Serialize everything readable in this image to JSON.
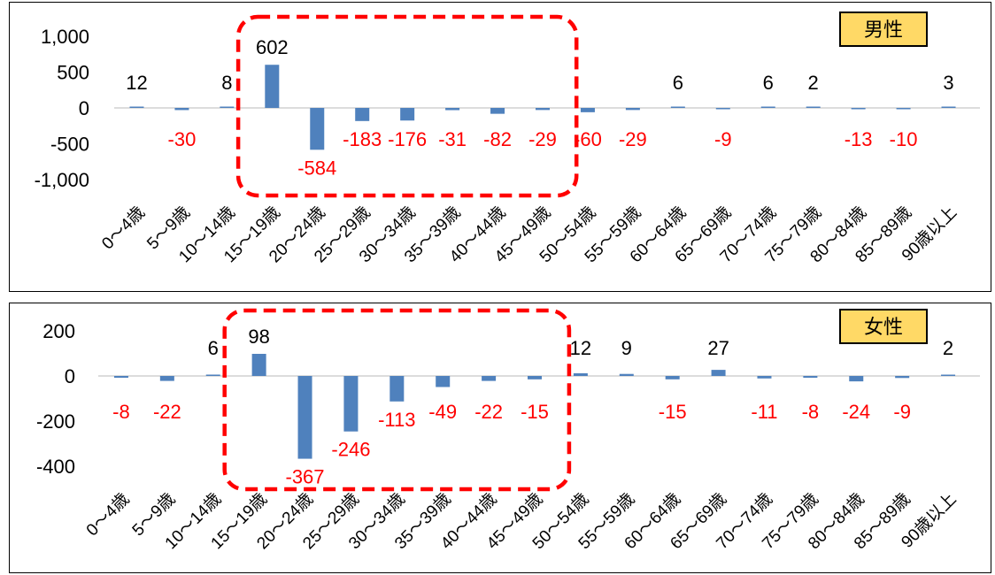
{
  "colors": {
    "bar": "#4f81bd",
    "negative_label": "#ff0000",
    "positive_label": "#000000",
    "highlight": "#ff0000",
    "badge": "#ffd966"
  },
  "chart_data": [
    {
      "type": "bar",
      "title": "男性",
      "categories": [
        "0～4歳",
        "5～9歳",
        "10～14歳",
        "15～19歳",
        "20～24歳",
        "25～29歳",
        "30～34歳",
        "35～39歳",
        "40～44歳",
        "45～49歳",
        "50～54歳",
        "55～59歳",
        "60～64歳",
        "65～69歳",
        "70～74歳",
        "75～79歳",
        "80～84歳",
        "85～89歳",
        "90歳以上"
      ],
      "values": [
        12,
        -30,
        8,
        602,
        -584,
        -183,
        -176,
        -31,
        -82,
        -29,
        -60,
        -29,
        6,
        -9,
        6,
        2,
        -13,
        -10,
        3
      ],
      "yticks": [
        "1,000",
        "500",
        "0",
        "-500",
        "-1,000"
      ],
      "ylim": [
        -1000,
        1000
      ],
      "highlight_range": [
        "15～19歳",
        "45～49歳"
      ]
    },
    {
      "type": "bar",
      "title": "女性",
      "categories": [
        "0～4歳",
        "5～9歳",
        "10～14歳",
        "15～19歳",
        "20～24歳",
        "25～29歳",
        "30～34歳",
        "35～39歳",
        "40～44歳",
        "45～49歳",
        "50～54歳",
        "55～59歳",
        "60～64歳",
        "65～69歳",
        "70～74歳",
        "75～79歳",
        "80～84歳",
        "85～89歳",
        "90歳以上"
      ],
      "values": [
        -8,
        -22,
        6,
        98,
        -367,
        -246,
        -113,
        -49,
        -22,
        -15,
        12,
        9,
        -15,
        27,
        -11,
        -8,
        -24,
        -9,
        2
      ],
      "yticks": [
        "200",
        "0",
        "-200",
        "-400"
      ],
      "ylim": [
        -400,
        200
      ],
      "highlight_range": [
        "15～19歳",
        "45～49歳"
      ]
    }
  ]
}
